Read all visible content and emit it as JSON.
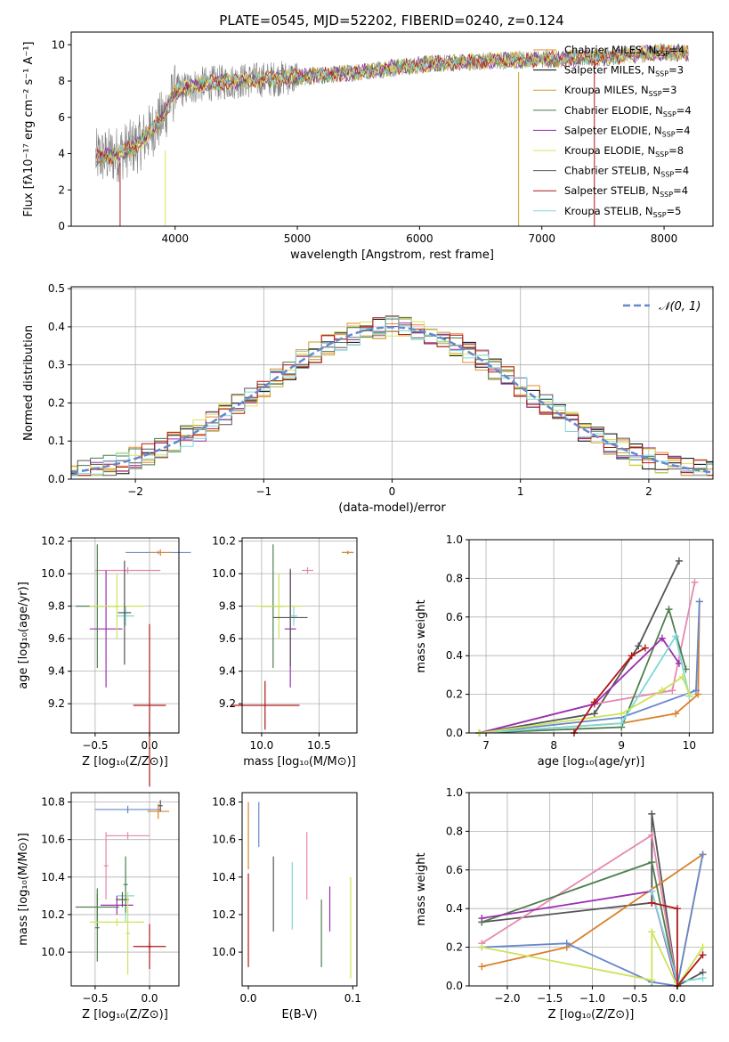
{
  "figure": {
    "title": "PLATE=0545, MJD=52202, FIBERID=0240, z=0.124"
  },
  "colors": {
    "CM": "#ea8a2a",
    "SM": "#000000",
    "KM": "#c9a227",
    "CE": "#4a7a4a",
    "SE": "#9b30b0",
    "KE": "#dde35a",
    "CS": "#555555",
    "SS": "#b01717",
    "KS": "#7fd8d8",
    "SPEC": "#7f7f7f",
    "BLUE": "#6688cc",
    "PINK": "#e688b0",
    "DARKRED": "#b01717",
    "ORANGE": "#d9822b",
    "GREEN": "#4f7f4f",
    "PURPLE": "#9b30b0",
    "LIME": "#cde35a",
    "CYAN": "#7fd8d8",
    "GREY": "#555555"
  },
  "chart_data": [
    {
      "id": "spectrum",
      "type": "line",
      "title": "PLATE=0545, MJD=52202, FIBERID=0240, z=0.124",
      "xlabel": "wavelength [Angstrom, rest frame]",
      "ylabel": "Flux [fλ10⁻¹⁷ erg cm⁻² s⁻¹ A⁻¹]",
      "xlim": [
        3150,
        8400
      ],
      "ylim": [
        0,
        10.7
      ],
      "xticks": [
        "4000",
        "5000",
        "6000",
        "7000",
        "8000"
      ],
      "yticks": [
        "0",
        "2",
        "4",
        "6",
        "8",
        "10"
      ],
      "grid": false,
      "legend_position": "top-right",
      "legend": [
        "Chabrier MILES, N_SSP=4",
        "Salpeter MILES, N_SSP=3",
        "Kroupa MILES, N_SSP=3",
        "Chabrier ELODIE, N_SSP=4",
        "Salpeter ELODIE, N_SSP=4",
        "Kroupa ELODIE, N_SSP=8",
        "Chabrier STELIB, N_SSP=4",
        "Salpeter STELIB, N_SSP=4",
        "Kroupa STELIB, N_SSP=5"
      ],
      "continuum": {
        "x": [
          3350,
          3500,
          3700,
          3900,
          4000,
          4200,
          4500,
          5000,
          5500,
          6000,
          6500,
          7000,
          7500,
          8000,
          8200
        ],
        "y": [
          3.8,
          3.9,
          4.5,
          6.0,
          7.4,
          7.8,
          8.0,
          8.2,
          8.5,
          8.9,
          9.1,
          9.2,
          9.3,
          9.6,
          9.5
        ]
      },
      "spike_lines": [
        {
          "x": 3550,
          "ymin": 0,
          "ymax": 3.5,
          "color": "#b01717"
        },
        {
          "x": 3920,
          "ymin": 0,
          "ymax": 4.2,
          "color": "#dde35a"
        },
        {
          "x": 6810,
          "ymin": 0,
          "ymax": 8.5,
          "color": "#c9a227"
        },
        {
          "x": 7430,
          "ymin": 0,
          "ymax": 9.2,
          "color": "#b01717"
        }
      ]
    },
    {
      "id": "residuals",
      "type": "histogram",
      "xlabel": "(data-model)/error",
      "ylabel": "Normed distribution",
      "xlim": [
        -2.5,
        2.5
      ],
      "ylim": [
        0,
        0.505
      ],
      "xticks": [
        "−2",
        "−1",
        "0",
        "1",
        "2"
      ],
      "yticks": [
        "0.0",
        "0.1",
        "0.2",
        "0.3",
        "0.4",
        "0.5"
      ],
      "grid": true,
      "legend_position": "top-right",
      "legend": [
        "𝒩(0, 1)"
      ],
      "bin_width": 0.1,
      "peaks": [
        0.41,
        0.48,
        0.44,
        0.43,
        0.42,
        0.43,
        0.44,
        0.41,
        0.42
      ]
    },
    {
      "id": "row3-z-age",
      "type": "scatter",
      "xlabel": "Z [log₁₀(Z/Z⊙)]",
      "ylabel": "age  [log₁₀(age/yr)]",
      "xlim": [
        -0.72,
        0.27
      ],
      "ylim": [
        9.02,
        10.22
      ],
      "xticks": [
        "−0.5",
        "0.0"
      ],
      "yticks": [
        "9.2",
        "9.4",
        "9.6",
        "9.8",
        "10.0",
        "10.2"
      ],
      "grid": true,
      "points": [
        {
          "x": 0.08,
          "y": 10.13,
          "xerr": 0.3,
          "yerr": 0.01,
          "c": "#6688cc"
        },
        {
          "x": 0.1,
          "y": 10.13,
          "xerr": 0.1,
          "yerr": 0.02,
          "c": "#d9822b"
        },
        {
          "x": -0.2,
          "y": 10.02,
          "xerr": 0.3,
          "yerr": 0.02,
          "c": "#e688b0"
        },
        {
          "x": -0.4,
          "y": 9.66,
          "xerr": 0.15,
          "yerr": 0.36,
          "c": "#9b30b0"
        },
        {
          "x": -0.48,
          "y": 9.8,
          "xerr": 0.2,
          "yerr": 0.38,
          "c": "#4f7f4f"
        },
        {
          "x": -0.3,
          "y": 9.8,
          "xerr": 0.25,
          "yerr": 0.2,
          "c": "#cde35a"
        },
        {
          "x": -0.22,
          "y": 9.74,
          "xerr": 0.08,
          "yerr": 0.06,
          "c": "#7fd8d8"
        },
        {
          "x": -0.23,
          "y": 9.76,
          "xerr": 0.06,
          "yerr": 0.32,
          "c": "#555555"
        },
        {
          "x": 0.0,
          "y": 9.19,
          "xerr": 0.15,
          "yerr": 0.5,
          "c": "#b01717"
        }
      ]
    },
    {
      "id": "row3-mass-age",
      "type": "scatter",
      "xlabel": "mass [log₁₀(M/M⊙)]",
      "ylabel": "",
      "xlim": [
        9.83,
        10.83
      ],
      "ylim": [
        9.02,
        10.22
      ],
      "xticks": [
        "10.0",
        "10.5"
      ],
      "yticks": [
        "9.2",
        "9.4",
        "9.6",
        "9.8",
        "10.0",
        "10.2"
      ],
      "grid": true,
      "points": [
        {
          "x": 10.75,
          "y": 10.13,
          "xerr": 0.05,
          "yerr": 0.01,
          "c": "#6688cc"
        },
        {
          "x": 10.75,
          "y": 10.13,
          "xerr": 0.05,
          "yerr": 0.01,
          "c": "#d9822b"
        },
        {
          "x": 10.4,
          "y": 10.02,
          "xerr": 0.05,
          "yerr": 0.02,
          "c": "#e688b0"
        },
        {
          "x": 10.25,
          "y": 9.66,
          "xerr": 0.05,
          "yerr": 0.36,
          "c": "#9b30b0"
        },
        {
          "x": 10.1,
          "y": 9.8,
          "xerr": 0.1,
          "yerr": 0.38,
          "c": "#4f7f4f"
        },
        {
          "x": 10.15,
          "y": 9.8,
          "xerr": 0.2,
          "yerr": 0.2,
          "c": "#cde35a"
        },
        {
          "x": 10.28,
          "y": 9.74,
          "xerr": 0.03,
          "yerr": 0.06,
          "c": "#7fd8d8"
        },
        {
          "x": 10.25,
          "y": 9.73,
          "xerr": 0.15,
          "yerr": 0.3,
          "c": "#555555"
        },
        {
          "x": 10.03,
          "y": 9.19,
          "xerr": 0.3,
          "yerr": 0.15,
          "c": "#b01717"
        }
      ]
    },
    {
      "id": "row3-age-weight",
      "type": "line",
      "xlabel": "age  [log₁₀(age/yr)]",
      "ylabel": "mass weight",
      "xlim": [
        6.75,
        10.35
      ],
      "ylim": [
        0,
        1.0
      ],
      "xticks": [
        "7",
        "8",
        "9",
        "10"
      ],
      "yticks": [
        "0.0",
        "0.2",
        "0.4",
        "0.6",
        "0.8",
        "1.0"
      ],
      "grid": true,
      "series": [
        {
          "c": "#555555",
          "x": [
            6.9,
            8.6,
            9.25,
            9.85
          ],
          "y": [
            0.0,
            0.1,
            0.45,
            0.89
          ]
        },
        {
          "c": "#e688b0",
          "x": [
            6.9,
            8.6,
            9.75,
            10.08
          ],
          "y": [
            0.0,
            0.15,
            0.22,
            0.78
          ]
        },
        {
          "c": "#d9822b",
          "x": [
            6.9,
            9.0,
            9.8,
            10.13,
            10.15
          ],
          "y": [
            0.0,
            0.05,
            0.1,
            0.2,
            0.68
          ]
        },
        {
          "c": "#6688cc",
          "x": [
            6.9,
            9.0,
            10.1,
            10.15
          ],
          "y": [
            0.0,
            0.08,
            0.22,
            0.68
          ]
        },
        {
          "c": "#4f7f4f",
          "x": [
            6.9,
            9.0,
            9.7,
            9.95
          ],
          "y": [
            0.0,
            0.03,
            0.64,
            0.33
          ]
        },
        {
          "c": "#9b30b0",
          "x": [
            6.9,
            8.6,
            9.6,
            9.85
          ],
          "y": [
            0.0,
            0.15,
            0.49,
            0.36
          ]
        },
        {
          "c": "#7fd8d8",
          "x": [
            6.9,
            9.0,
            9.8,
            10.0
          ],
          "y": [
            0.0,
            0.05,
            0.5,
            0.19
          ]
        },
        {
          "c": "#cde35a",
          "x": [
            6.9,
            9.0,
            9.6,
            9.9,
            10.0
          ],
          "y": [
            0.0,
            0.1,
            0.22,
            0.29,
            0.2
          ]
        },
        {
          "c": "#b01717",
          "x": [
            8.3,
            8.6,
            9.15,
            9.35
          ],
          "y": [
            0.0,
            0.16,
            0.4,
            0.44
          ]
        }
      ]
    },
    {
      "id": "row4-z-mass",
      "type": "scatter",
      "xlabel": "Z [log₁₀(Z/Z⊙)]",
      "ylabel": "mass [log₁₀(M/M⊙)]",
      "xlim": [
        -0.72,
        0.27
      ],
      "ylim": [
        9.82,
        10.85
      ],
      "xticks": [
        "−0.5",
        "0.0"
      ],
      "yticks": [
        "10.0",
        "10.2",
        "10.4",
        "10.6",
        "10.8"
      ],
      "grid": true,
      "points": [
        {
          "x": -0.2,
          "y": 10.76,
          "xerr": 0.3,
          "yerr": 0.02,
          "c": "#6688cc"
        },
        {
          "x": 0.08,
          "y": 10.75,
          "xerr": 0.1,
          "yerr": 0.04,
          "c": "#d9822b"
        },
        {
          "x": 0.1,
          "y": 10.78,
          "xerr": 0.02,
          "yerr": 0.03,
          "c": "#555555"
        },
        {
          "x": -0.2,
          "y": 10.62,
          "xerr": 0.2,
          "yerr": 0.02,
          "c": "#e688b0"
        },
        {
          "x": -0.4,
          "y": 10.46,
          "xerr": 0.02,
          "yerr": 0.18,
          "c": "#e688b0"
        },
        {
          "x": -0.22,
          "y": 10.3,
          "xerr": 0.08,
          "yerr": 0.14,
          "c": "#7fd8d8"
        },
        {
          "x": -0.22,
          "y": 10.36,
          "xerr": 0.02,
          "yerr": 0.15,
          "c": "#4f7f4f"
        },
        {
          "x": -0.3,
          "y": 10.25,
          "xerr": 0.15,
          "yerr": 0.05,
          "c": "#9b30b0"
        },
        {
          "x": -0.25,
          "y": 10.28,
          "xerr": 0.06,
          "yerr": 0.04,
          "c": "#555555"
        },
        {
          "x": -0.48,
          "y": 10.24,
          "xerr": 0.2,
          "yerr": 0.1,
          "c": "#4f7f4f"
        },
        {
          "x": -0.48,
          "y": 10.13,
          "xerr": 0.02,
          "yerr": 0.18,
          "c": "#4f7f4f"
        },
        {
          "x": -0.3,
          "y": 10.16,
          "xerr": 0.25,
          "yerr": 0.02,
          "c": "#cde35a"
        },
        {
          "x": -0.2,
          "y": 10.1,
          "xerr": 0.02,
          "yerr": 0.22,
          "c": "#cde35a"
        },
        {
          "x": 0.0,
          "y": 10.03,
          "xerr": 0.15,
          "yerr": 0.02,
          "c": "#b01717"
        },
        {
          "x": 0.0,
          "y": 10.03,
          "xerr": 0.02,
          "yerr": 0.12,
          "c": "#b01717"
        }
      ]
    },
    {
      "id": "row4-ebv-mass",
      "type": "scatter",
      "xlabel": "E(B-V)",
      "ylabel": "",
      "xlim": [
        -0.006,
        0.104
      ],
      "ylim": [
        9.82,
        10.85
      ],
      "xticks": [
        "0.0",
        "0.1"
      ],
      "yticks": [
        "10.0",
        "10.2",
        "10.4",
        "10.6",
        "10.8"
      ],
      "grid": false,
      "points": [
        {
          "x": 0.0,
          "y": 10.62,
          "xerr": 0,
          "yerr": 0.18,
          "c": "#d9822b"
        },
        {
          "x": 0.0,
          "y": 10.17,
          "xerr": 0,
          "yerr": 0.25,
          "c": "#b01717"
        },
        {
          "x": 0.01,
          "y": 10.68,
          "xerr": 0,
          "yerr": 0.12,
          "c": "#6688cc"
        },
        {
          "x": 0.024,
          "y": 10.31,
          "xerr": 0,
          "yerr": 0.2,
          "c": "#555555"
        },
        {
          "x": 0.042,
          "y": 10.3,
          "xerr": 0,
          "yerr": 0.18,
          "c": "#7fd8d8"
        },
        {
          "x": 0.056,
          "y": 10.46,
          "xerr": 0,
          "yerr": 0.18,
          "c": "#e688b0"
        },
        {
          "x": 0.07,
          "y": 10.1,
          "xerr": 0,
          "yerr": 0.18,
          "c": "#4f7f4f"
        },
        {
          "x": 0.078,
          "y": 10.23,
          "xerr": 0,
          "yerr": 0.12,
          "c": "#9b30b0"
        },
        {
          "x": 0.098,
          "y": 10.13,
          "xerr": 0,
          "yerr": 0.27,
          "c": "#cde35a"
        }
      ]
    },
    {
      "id": "row4-z-weight",
      "type": "line",
      "xlabel": "Z [log₁₀(Z/Z⊙)]",
      "ylabel": "mass weight",
      "xlim": [
        -2.45,
        0.42
      ],
      "ylim": [
        0,
        1.0
      ],
      "xticks": [
        "−2.0",
        "−1.5",
        "−1.0",
        "−0.5",
        "0.0"
      ],
      "yticks": [
        "0.0",
        "0.2",
        "0.4",
        "0.6",
        "0.8",
        "1.0"
      ],
      "grid": true,
      "series": [
        {
          "c": "#555555",
          "x": [
            -2.3,
            -0.3,
            -0.3,
            0.0,
            0.3
          ],
          "y": [
            0.33,
            0.43,
            0.89,
            0.0,
            0.07
          ]
        },
        {
          "c": "#e688b0",
          "x": [
            -2.3,
            -0.3,
            0.0
          ],
          "y": [
            0.22,
            0.78,
            0.0
          ]
        },
        {
          "c": "#d9822b",
          "x": [
            -2.3,
            -1.3,
            0.3,
            0.0
          ],
          "y": [
            0.1,
            0.2,
            0.68,
            0.0
          ]
        },
        {
          "c": "#6688cc",
          "x": [
            -2.3,
            -1.3,
            -0.3,
            0.0,
            0.3
          ],
          "y": [
            0.2,
            0.22,
            0.02,
            0.0,
            0.68
          ]
        },
        {
          "c": "#4f7f4f",
          "x": [
            -2.3,
            -0.3,
            0.0
          ],
          "y": [
            0.33,
            0.64,
            0.0
          ]
        },
        {
          "c": "#9b30b0",
          "x": [
            -2.3,
            -0.3,
            0.0
          ],
          "y": [
            0.35,
            0.49,
            0.0
          ]
        },
        {
          "c": "#7fd8d8",
          "x": [
            -0.3,
            0.0,
            0.3
          ],
          "y": [
            0.49,
            0.02,
            0.04
          ]
        },
        {
          "c": "#cde35a",
          "x": [
            -2.3,
            -0.3,
            -0.3,
            0.0,
            0.3
          ],
          "y": [
            0.2,
            0.03,
            0.28,
            0.0,
            0.2
          ]
        },
        {
          "c": "#b01717",
          "x": [
            -0.3,
            0.0,
            0.0,
            0.3
          ],
          "y": [
            0.43,
            0.4,
            0.0,
            0.16
          ]
        }
      ]
    }
  ]
}
